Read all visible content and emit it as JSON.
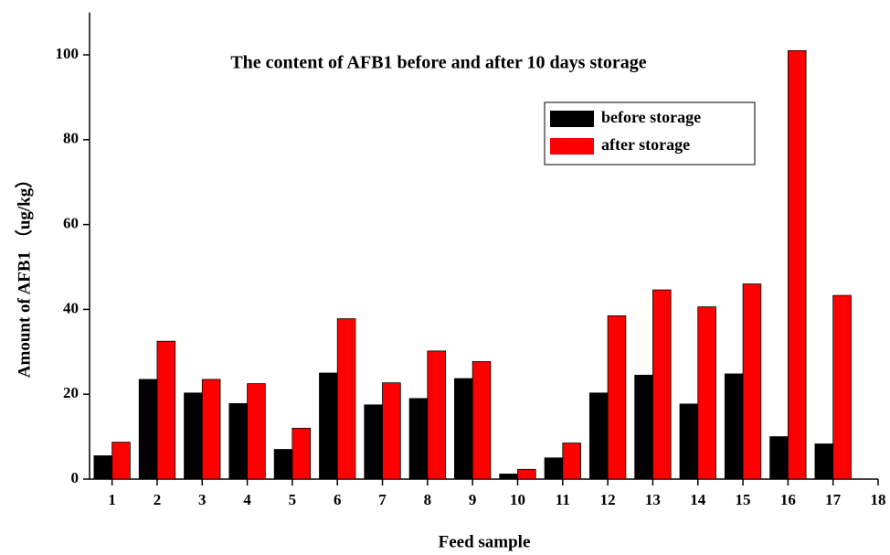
{
  "chart_data": {
    "type": "bar",
    "title": "The content of AFB1 before and after 10 days storage",
    "x_label": "Feed sample",
    "y_label": "Amount of AFB1 （ug/kg）",
    "x": [
      1,
      2,
      3,
      4,
      5,
      6,
      7,
      8,
      9,
      10,
      11,
      12,
      13,
      14,
      15,
      16,
      17
    ],
    "series": [
      {
        "name": "before storage",
        "color": "#000000",
        "values": [
          5.5,
          23.5,
          20.3,
          17.8,
          7,
          25,
          17.5,
          19,
          23.7,
          1.2,
          5,
          20.3,
          24.5,
          17.7,
          24.8,
          10,
          8.3
        ]
      },
      {
        "name": "after storage",
        "color": "#ff0000",
        "values": [
          8.7,
          32.5,
          23.5,
          22.5,
          12,
          37.8,
          22.7,
          30.2,
          27.7,
          2.3,
          8.5,
          38.5,
          44.6,
          40.6,
          46,
          101,
          43.3
        ]
      }
    ],
    "xlim": [
      0.5,
      18
    ],
    "xticks": [
      1,
      2,
      3,
      4,
      5,
      6,
      7,
      8,
      9,
      10,
      11,
      12,
      13,
      14,
      15,
      16,
      17,
      18
    ],
    "ylim": [
      0,
      110
    ],
    "yticks": [
      0,
      20,
      40,
      60,
      80,
      100
    ],
    "grid": false,
    "legend": "upper right"
  }
}
